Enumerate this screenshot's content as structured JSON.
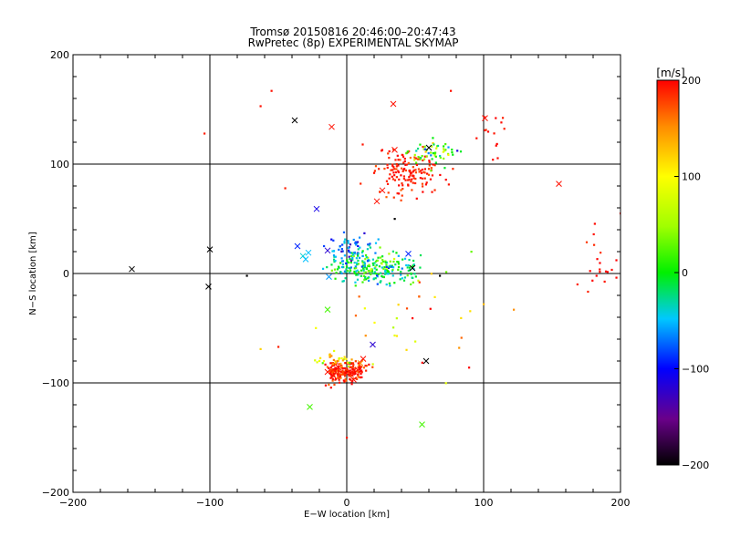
{
  "chart_data": {
    "type": "scatter",
    "title": "Tromsø 20150816 20:46:00–20:47:43",
    "subtitle": "RwPretec (8p) EXPERIMENTAL SKYMAP",
    "xlabel": "E−W location [km]",
    "ylabel": "N−S location [km]",
    "xlim": [
      -200,
      200
    ],
    "ylim": [
      -200,
      200
    ],
    "x_ticks": [
      -200,
      -100,
      0,
      100,
      200
    ],
    "y_ticks": [
      -200,
      -100,
      0,
      100,
      200
    ],
    "x_tick_labels": [
      "−200",
      "−100",
      "0",
      "100",
      "200"
    ],
    "y_tick_labels": [
      "−200",
      "−100",
      "0",
      "100",
      "200"
    ],
    "grid": "major gridlines at ±100 and 0 km",
    "colorbar": {
      "label": "[m/s]",
      "range": [
        -200,
        200
      ],
      "ticks": [
        -200,
        -100,
        0,
        100,
        200
      ],
      "tick_labels": [
        "−200",
        "−100",
        "0",
        "100",
        "200"
      ],
      "colormap": "black-purple-blue-cyan-green-yellow-orange-red"
    },
    "markers": {
      "small": "dot",
      "large": "x"
    },
    "clusters": [
      {
        "cx": 45,
        "cy": 93,
        "sx": 12,
        "sy": 10,
        "n": 150,
        "v": 190,
        "vs": 10
      },
      {
        "cx": 62,
        "cy": 110,
        "sx": 9,
        "sy": 6,
        "n": 55,
        "v": 10,
        "vs": 50
      },
      {
        "cx": 20,
        "cy": 4,
        "sx": 16,
        "sy": 7,
        "n": 230,
        "v": -5,
        "vs": 35
      },
      {
        "cx": 3,
        "cy": 20,
        "sx": 9,
        "sy": 8,
        "n": 80,
        "v": -55,
        "vs": 30
      },
      {
        "cx": -8,
        "cy": -90,
        "sx": 4,
        "sy": 5,
        "n": 90,
        "v": 190,
        "vs": 15
      },
      {
        "cx": 6,
        "cy": -90,
        "sx": 5,
        "sy": 5,
        "n": 90,
        "v": 190,
        "vs": 15
      },
      {
        "cx": -5,
        "cy": -80,
        "sx": 8,
        "sy": 3,
        "n": 30,
        "v": 110,
        "vs": 40
      },
      {
        "cx": 185,
        "cy": 5,
        "sx": 9,
        "sy": 12,
        "n": 20,
        "v": 195,
        "vs": 5
      },
      {
        "cx": 108,
        "cy": 125,
        "sx": 6,
        "sy": 12,
        "n": 14,
        "v": 195,
        "vs": 5
      },
      {
        "cx": 45,
        "cy": -45,
        "sx": 25,
        "sy": 30,
        "n": 30,
        "v": 130,
        "vs": 70
      }
    ],
    "points": [
      {
        "x": -55,
        "y": 167,
        "v": 195,
        "m": "dot"
      },
      {
        "x": -63,
        "y": 153,
        "v": 195,
        "m": "dot"
      },
      {
        "x": -104,
        "y": 128,
        "v": 190,
        "m": "dot"
      },
      {
        "x": 76,
        "y": 167,
        "v": 195,
        "m": "dot"
      },
      {
        "x": -45,
        "y": 78,
        "v": 190,
        "m": "dot"
      },
      {
        "x": -73,
        "y": -2,
        "v": -200,
        "m": "dot"
      },
      {
        "x": -63,
        "y": -69,
        "v": 120,
        "m": "dot"
      },
      {
        "x": -50,
        "y": -67,
        "v": 190,
        "m": "dot"
      },
      {
        "x": 0,
        "y": -150,
        "v": 190,
        "m": "dot"
      },
      {
        "x": 100,
        "y": -28,
        "v": 130,
        "m": "dot"
      },
      {
        "x": 122,
        "y": -33,
        "v": 150,
        "m": "dot"
      },
      {
        "x": 200,
        "y": 55,
        "v": 195,
        "m": "dot"
      },
      {
        "x": 68,
        "y": -2,
        "v": -200,
        "m": "dot"
      },
      {
        "x": 35,
        "y": 50,
        "v": -200,
        "m": "dot"
      },
      {
        "x": 91,
        "y": 20,
        "v": 30,
        "m": "dot"
      },
      {
        "x": -38,
        "y": 140,
        "v": -200,
        "m": "x"
      },
      {
        "x": -100,
        "y": 22,
        "v": -200,
        "m": "x"
      },
      {
        "x": -157,
        "y": 4,
        "v": -200,
        "m": "x"
      },
      {
        "x": -101,
        "y": -12,
        "v": -200,
        "m": "x"
      },
      {
        "x": -11,
        "y": 134,
        "v": 195,
        "m": "x"
      },
      {
        "x": 34,
        "y": 155,
        "v": 195,
        "m": "x"
      },
      {
        "x": 155,
        "y": 82,
        "v": 195,
        "m": "x"
      },
      {
        "x": 101,
        "y": 142,
        "v": 195,
        "m": "x"
      },
      {
        "x": -22,
        "y": 59,
        "v": -110,
        "m": "x"
      },
      {
        "x": -36,
        "y": 25,
        "v": -90,
        "m": "x"
      },
      {
        "x": -14,
        "y": 21,
        "v": -120,
        "m": "x"
      },
      {
        "x": -28,
        "y": 19,
        "v": -50,
        "m": "x"
      },
      {
        "x": -32,
        "y": 16,
        "v": -40,
        "m": "x"
      },
      {
        "x": -30,
        "y": 13,
        "v": -50,
        "m": "x"
      },
      {
        "x": -13,
        "y": -3,
        "v": -60,
        "m": "x"
      },
      {
        "x": -14,
        "y": -33,
        "v": 20,
        "m": "x"
      },
      {
        "x": -27,
        "y": -122,
        "v": 20,
        "m": "x"
      },
      {
        "x": 55,
        "y": -138,
        "v": 20,
        "m": "x"
      },
      {
        "x": 19,
        "y": -65,
        "v": -120,
        "m": "x"
      },
      {
        "x": 58,
        "y": -80,
        "v": -200,
        "m": "x"
      },
      {
        "x": 48,
        "y": 5,
        "v": -200,
        "m": "x"
      },
      {
        "x": 35,
        "y": 113,
        "v": 195,
        "m": "x"
      },
      {
        "x": 26,
        "y": 76,
        "v": 195,
        "m": "x"
      },
      {
        "x": 22,
        "y": 66,
        "v": 195,
        "m": "x"
      },
      {
        "x": 60,
        "y": 115,
        "v": -200,
        "m": "x"
      },
      {
        "x": 45,
        "y": 18,
        "v": -90,
        "m": "x"
      },
      {
        "x": 12,
        "y": -78,
        "v": 195,
        "m": "x"
      },
      {
        "x": -6,
        "y": -86,
        "v": 195,
        "m": "x"
      },
      {
        "x": 3,
        "y": -92,
        "v": 195,
        "m": "x"
      },
      {
        "x": 8,
        "y": -88,
        "v": 195,
        "m": "x"
      },
      {
        "x": -10,
        "y": -93,
        "v": 195,
        "m": "x"
      },
      {
        "x": -14,
        "y": -90,
        "v": 195,
        "m": "x"
      },
      {
        "x": 5,
        "y": -97,
        "v": 195,
        "m": "x"
      },
      {
        "x": 10,
        "y": -82,
        "v": 150,
        "m": "x"
      }
    ]
  }
}
